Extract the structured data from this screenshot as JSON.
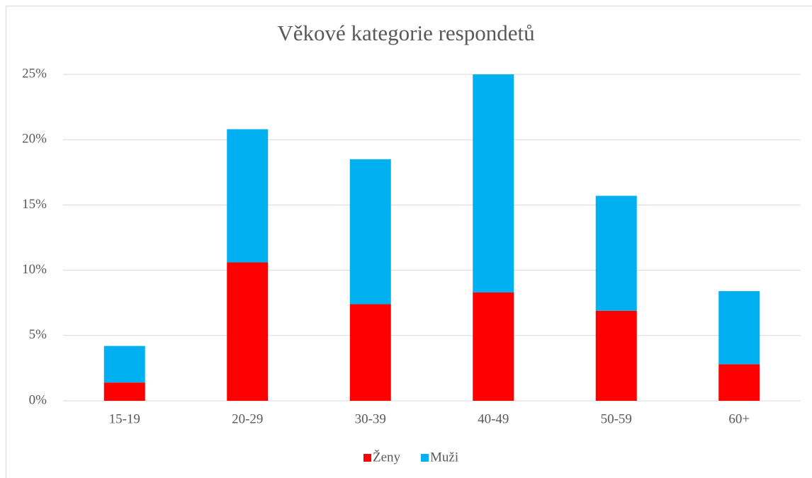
{
  "chart_data": {
    "type": "stacked_bar",
    "title": "Věkové kategorie respondetů",
    "categories": [
      "15-19",
      "20-29",
      "30-39",
      "40-49",
      "50-59",
      "60+"
    ],
    "series": [
      {
        "name": "Ženy",
        "color": "#ff0000",
        "values": [
          1.4,
          10.6,
          7.4,
          8.3,
          6.9,
          2.8
        ]
      },
      {
        "name": "Muži",
        "color": "#00b0f0",
        "values": [
          2.8,
          10.2,
          11.1,
          16.7,
          8.8,
          5.6
        ]
      }
    ],
    "ylim": [
      0,
      25
    ],
    "yticks": [
      {
        "value": 0,
        "label": "0%"
      },
      {
        "value": 5,
        "label": "5%"
      },
      {
        "value": 10,
        "label": "10%"
      },
      {
        "value": 15,
        "label": "15%"
      },
      {
        "value": 20,
        "label": "20%"
      },
      {
        "value": 25,
        "label": "25%"
      }
    ],
    "grid": true,
    "legend": "bottom"
  }
}
